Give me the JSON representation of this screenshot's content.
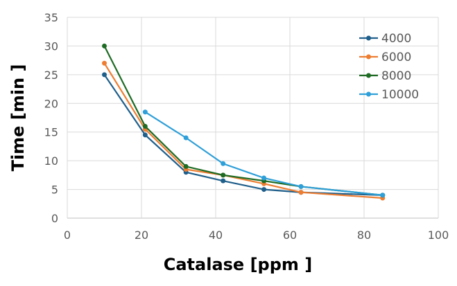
{
  "chart_data": {
    "type": "line",
    "title": "",
    "xlabel": "Catalase  [ppm ]",
    "ylabel": "Time [min ]",
    "xlim": [
      0,
      100
    ],
    "ylim": [
      0,
      35
    ],
    "xticks": [
      0,
      20,
      40,
      60,
      80,
      100
    ],
    "yticks": [
      0,
      5,
      10,
      15,
      20,
      25,
      30,
      35
    ],
    "grid": true,
    "legend": "top-right",
    "x": [
      10,
      21,
      32,
      42,
      53,
      63,
      85
    ],
    "series": [
      {
        "name": "4000",
        "color": "#1f5f8b",
        "values": [
          25,
          14.5,
          8,
          6.5,
          5,
          4.5,
          4
        ]
      },
      {
        "name": "6000",
        "color": "#ed7d31",
        "values": [
          27,
          15.5,
          8.5,
          7.5,
          6,
          4.5,
          3.5
        ]
      },
      {
        "name": "8000",
        "color": "#1e6b24",
        "values": [
          30,
          16,
          9,
          7.5,
          6.5,
          5.5,
          4
        ]
      },
      {
        "name": "10000",
        "color": "#2e9fd8",
        "values": [
          null,
          18.5,
          14,
          9.5,
          7,
          5.5,
          4
        ]
      }
    ]
  }
}
